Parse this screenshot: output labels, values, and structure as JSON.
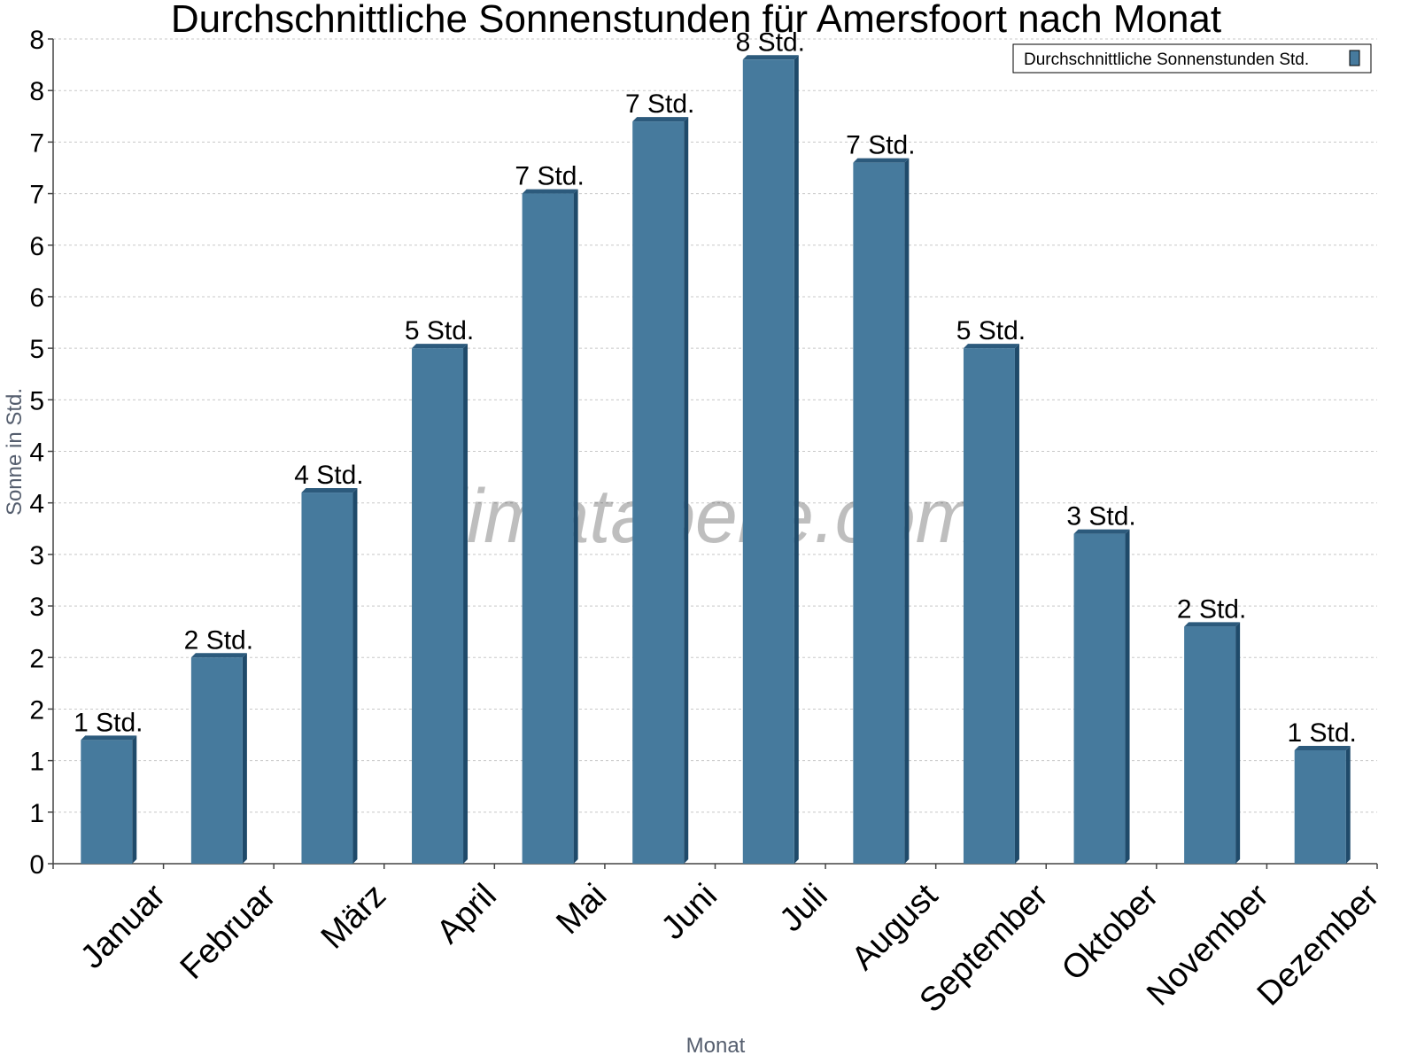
{
  "chart_data": {
    "type": "bar",
    "title": "Durchschnittliche Sonnenstunden für Amersfoort nach Monat",
    "xlabel": "Monat",
    "ylabel": "Sonne in Std.",
    "categories": [
      "Januar",
      "Februar",
      "März",
      "April",
      "Mai",
      "Juni",
      "Juli",
      "August",
      "September",
      "Oktober",
      "November",
      "Dezember"
    ],
    "series": [
      {
        "name": "Durchschnittliche Sonnenstunden Std.",
        "values": [
          1.2,
          2.0,
          3.6,
          5.0,
          6.5,
          7.2,
          7.8,
          6.8,
          5.0,
          3.2,
          2.3,
          1.1
        ],
        "labels": [
          "1 Std.",
          "2 Std.",
          "4 Std.",
          "5 Std.",
          "7 Std.",
          "7 Std.",
          "8 Std.",
          "7 Std.",
          "5 Std.",
          "3 Std.",
          "2 Std.",
          "1 Std."
        ]
      }
    ],
    "ylim": [
      0,
      8
    ],
    "yticks": [
      0,
      0.5,
      1,
      1.5,
      2,
      2.5,
      3,
      3.5,
      4,
      4.5,
      5,
      5.5,
      6,
      6.5,
      7,
      7.5,
      8
    ],
    "ytick_labels": [
      "0",
      "1",
      "1",
      "2",
      "2",
      "3",
      "3",
      "4",
      "4",
      "5",
      "5",
      "6",
      "6",
      "7",
      "7",
      "8",
      "8"
    ],
    "grid": true,
    "legend_position": "top-right",
    "colors": {
      "bar": "#467a9d",
      "bar_side": "#1f4a6a",
      "bar_top": "#2c5a7c"
    }
  },
  "watermark": "klimatabelle.com"
}
